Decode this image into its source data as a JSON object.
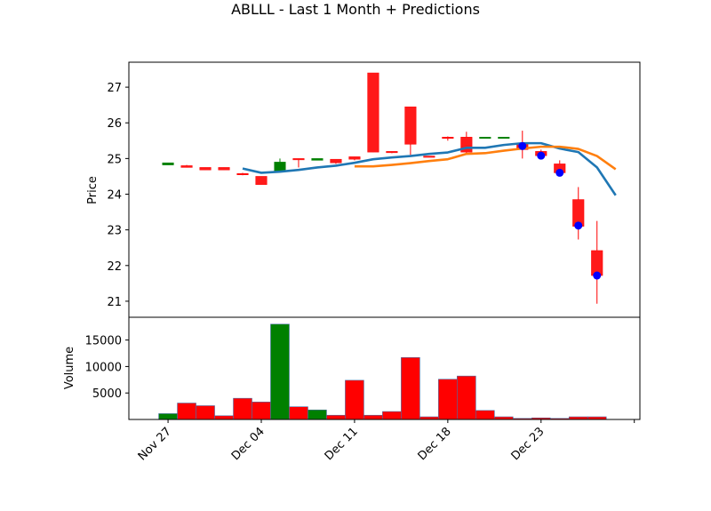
{
  "chart_data": {
    "type": "candlestick",
    "title": "ABLLL - Last 1 Month + Predictions",
    "price_panel": {
      "ylabel": "Price",
      "ylim": [
        20.55,
        27.7
      ],
      "yticks": [
        21,
        22,
        23,
        24,
        25,
        26,
        27
      ],
      "candles": [
        {
          "x": 0,
          "o": 24.82,
          "h": 24.88,
          "l": 24.82,
          "c": 24.88
        },
        {
          "x": 1,
          "o": 24.8,
          "h": 24.82,
          "l": 24.75,
          "c": 24.75
        },
        {
          "x": 2,
          "o": 24.75,
          "h": 24.75,
          "l": 24.68,
          "c": 24.68
        },
        {
          "x": 3,
          "o": 24.75,
          "h": 24.75,
          "l": 24.68,
          "c": 24.68
        },
        {
          "x": 4,
          "o": 24.58,
          "h": 24.6,
          "l": 24.53,
          "c": 24.56
        },
        {
          "x": 5,
          "o": 24.5,
          "h": 24.5,
          "l": 24.27,
          "c": 24.27
        },
        {
          "x": 6,
          "o": 24.65,
          "h": 25.0,
          "l": 24.62,
          "c": 24.9
        },
        {
          "x": 7,
          "o": 25.0,
          "h": 25.0,
          "l": 24.75,
          "c": 24.98
        },
        {
          "x": 8,
          "o": 24.95,
          "h": 25.0,
          "l": 24.95,
          "c": 25.0
        },
        {
          "x": 9,
          "o": 24.98,
          "h": 24.98,
          "l": 24.85,
          "c": 24.88
        },
        {
          "x": 10,
          "o": 25.05,
          "h": 25.05,
          "l": 24.95,
          "c": 24.98
        },
        {
          "x": 11,
          "o": 27.4,
          "h": 27.4,
          "l": 25.18,
          "c": 25.18
        },
        {
          "x": 12,
          "o": 25.2,
          "h": 25.2,
          "l": 25.15,
          "c": 25.17
        },
        {
          "x": 13,
          "o": 26.45,
          "h": 26.45,
          "l": 25.1,
          "c": 25.4
        },
        {
          "x": 14,
          "o": 25.07,
          "h": 25.07,
          "l": 25.05,
          "c": 25.05
        },
        {
          "x": 15,
          "o": 25.6,
          "h": 25.62,
          "l": 25.5,
          "c": 25.58
        },
        {
          "x": 16,
          "o": 25.6,
          "h": 25.75,
          "l": 25.15,
          "c": 25.18
        },
        {
          "x": 17,
          "o": 25.6,
          "h": 25.6,
          "l": 25.6,
          "c": 25.6
        },
        {
          "x": 18,
          "o": 25.6,
          "h": 25.6,
          "l": 25.6,
          "c": 25.6
        },
        {
          "x": 19,
          "o": 25.4,
          "h": 25.78,
          "l": 25.0,
          "c": 25.25
        },
        {
          "x": 20,
          "o": 25.2,
          "h": 25.25,
          "l": 25.0,
          "c": 25.08
        },
        {
          "x": 21,
          "o": 24.85,
          "h": 24.95,
          "l": 24.55,
          "c": 24.6
        },
        {
          "x": 22,
          "o": 23.85,
          "h": 24.2,
          "l": 22.73,
          "c": 23.1
        },
        {
          "x": 23,
          "o": 22.42,
          "h": 23.25,
          "l": 20.93,
          "c": 21.72
        }
      ],
      "series": [
        {
          "color": "#1f77b4",
          "points": [
            [
              4,
              24.72
            ],
            [
              5,
              24.6
            ],
            [
              6,
              24.63
            ],
            [
              7,
              24.68
            ],
            [
              8,
              24.75
            ],
            [
              9,
              24.8
            ],
            [
              10,
              24.88
            ],
            [
              11,
              24.98
            ],
            [
              12,
              25.03
            ],
            [
              13,
              25.07
            ],
            [
              14,
              25.13
            ],
            [
              15,
              25.17
            ],
            [
              16,
              25.3
            ],
            [
              17,
              25.3
            ],
            [
              18,
              25.38
            ],
            [
              19,
              25.43
            ],
            [
              20,
              25.43
            ],
            [
              21,
              25.28
            ],
            [
              22,
              25.18
            ],
            [
              23,
              24.75
            ],
            [
              24,
              23.97
            ]
          ]
        },
        {
          "color": "#ff7f0e",
          "points": [
            [
              10,
              24.78
            ],
            [
              11,
              24.78
            ],
            [
              12,
              24.82
            ],
            [
              13,
              24.87
            ],
            [
              14,
              24.93
            ],
            [
              15,
              24.98
            ],
            [
              16,
              25.13
            ],
            [
              17,
              25.15
            ],
            [
              18,
              25.22
            ],
            [
              19,
              25.28
            ],
            [
              20,
              25.33
            ],
            [
              21,
              25.33
            ],
            [
              22,
              25.27
            ],
            [
              23,
              25.07
            ],
            [
              24,
              24.7
            ]
          ]
        }
      ],
      "predictions": {
        "color": "#0000ff",
        "points": [
          [
            19,
            25.35
          ],
          [
            20,
            25.08
          ],
          [
            21,
            24.6
          ],
          [
            22,
            23.12
          ],
          [
            23,
            21.72
          ]
        ]
      }
    },
    "volume_panel": {
      "ylabel": "Volume",
      "ylim": [
        0,
        19300
      ],
      "yticks": [
        5000,
        10000,
        15000
      ],
      "bars": [
        {
          "x": 0,
          "v": 1100,
          "dir": "up"
        },
        {
          "x": 1,
          "v": 3100,
          "dir": "down"
        },
        {
          "x": 2,
          "v": 2600,
          "dir": "down"
        },
        {
          "x": 3,
          "v": 700,
          "dir": "down"
        },
        {
          "x": 4,
          "v": 4000,
          "dir": "down"
        },
        {
          "x": 5,
          "v": 3300,
          "dir": "down"
        },
        {
          "x": 6,
          "v": 18000,
          "dir": "up"
        },
        {
          "x": 7,
          "v": 2400,
          "dir": "down"
        },
        {
          "x": 8,
          "v": 1800,
          "dir": "up"
        },
        {
          "x": 9,
          "v": 800,
          "dir": "down"
        },
        {
          "x": 10,
          "v": 7400,
          "dir": "down"
        },
        {
          "x": 11,
          "v": 800,
          "dir": "down"
        },
        {
          "x": 12,
          "v": 1500,
          "dir": "down"
        },
        {
          "x": 13,
          "v": 11700,
          "dir": "down"
        },
        {
          "x": 14,
          "v": 500,
          "dir": "down"
        },
        {
          "x": 15,
          "v": 7600,
          "dir": "down"
        },
        {
          "x": 16,
          "v": 8200,
          "dir": "down"
        },
        {
          "x": 17,
          "v": 1700,
          "dir": "down"
        },
        {
          "x": 18,
          "v": 500,
          "dir": "down"
        },
        {
          "x": 19,
          "v": 200,
          "dir": "down"
        },
        {
          "x": 20,
          "v": 300,
          "dir": "down"
        },
        {
          "x": 21,
          "v": 200,
          "dir": "down"
        },
        {
          "x": 22,
          "v": 500,
          "dir": "down"
        },
        {
          "x": 23,
          "v": 500,
          "dir": "down"
        }
      ]
    },
    "x_ticks": [
      {
        "x": 0,
        "label": "Nov 27"
      },
      {
        "x": 5,
        "label": "Dec 04"
      },
      {
        "x": 10,
        "label": "Dec 11"
      },
      {
        "x": 15,
        "label": "Dec 18"
      },
      {
        "x": 20,
        "label": "Dec 23"
      },
      {
        "x": 25,
        "label": ""
      }
    ],
    "xlim": [
      -2.1,
      25.3
    ],
    "colors": {
      "up": "#008000",
      "down": "#ff0000",
      "down_body": "#ff1a1a",
      "edge": "#4a6fa5"
    }
  }
}
